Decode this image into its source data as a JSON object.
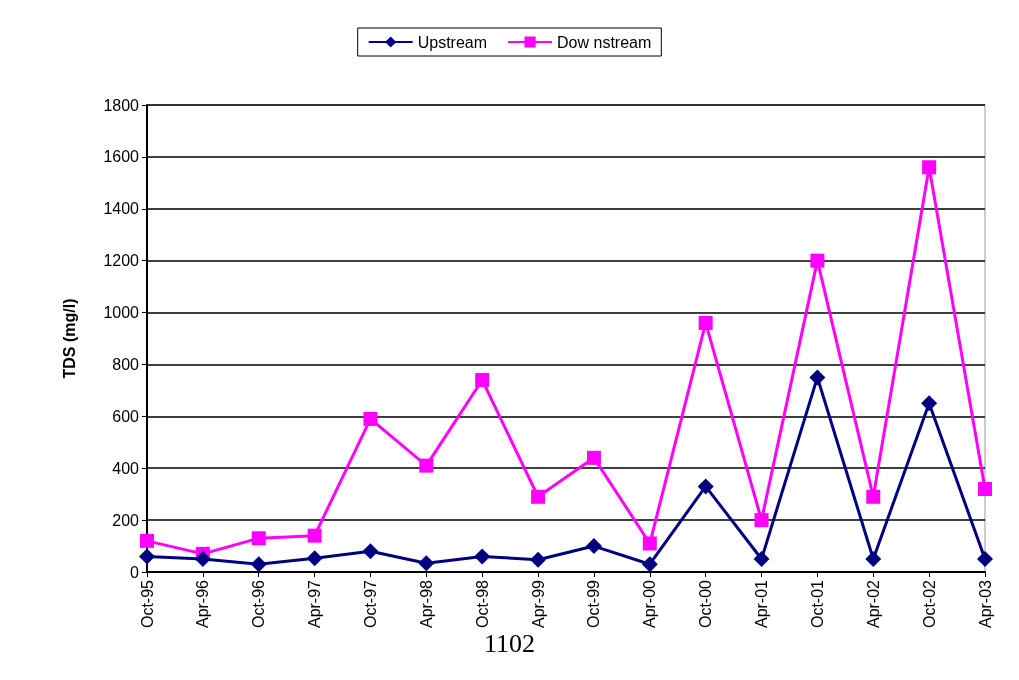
{
  "chart_data": {
    "type": "line",
    "ylabel": "TDS (mg/l)",
    "categories": [
      "Oct-95",
      "Apr-96",
      "Oct-96",
      "Apr-97",
      "Oct-97",
      "Apr-98",
      "Oct-98",
      "Apr-99",
      "Oct-99",
      "Apr-00",
      "Oct-00",
      "Apr-01",
      "Oct-01",
      "Apr-02",
      "Oct-02",
      "Apr-03"
    ],
    "series": [
      {
        "name": "Upstream",
        "color": "#000080",
        "marker": "diamond",
        "values": [
          60,
          50,
          30,
          53,
          80,
          34,
          60,
          47,
          100,
          30,
          330,
          50,
          750,
          50,
          650,
          50
        ]
      },
      {
        "name": "Dow nstream",
        "color": "#ff00ff",
        "marker": "square",
        "values": [
          120,
          70,
          130,
          140,
          590,
          410,
          740,
          290,
          440,
          110,
          960,
          200,
          1200,
          290,
          1560,
          320
        ]
      }
    ],
    "ylim": [
      0,
      1800
    ],
    "yticks": [
      0,
      200,
      400,
      600,
      800,
      1000,
      1200,
      1400,
      1600,
      1800
    ],
    "grid": "y",
    "legend": "top",
    "line_style": "solid",
    "annotations": [
      "1102"
    ]
  }
}
